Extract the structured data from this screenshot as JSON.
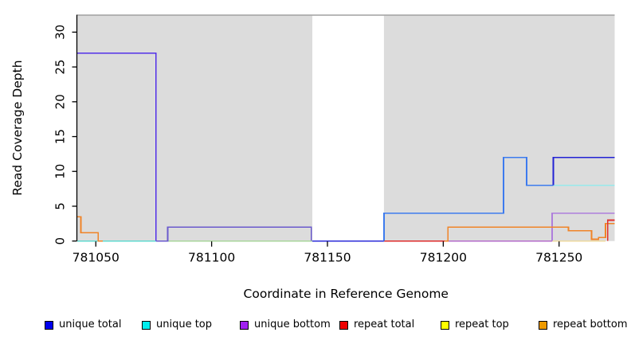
{
  "chart_data": {
    "type": "line",
    "subtype": "step-coverage",
    "title": "",
    "xlabel": "Coordinate in Reference Genome",
    "ylabel": "Read Coverage Depth",
    "xlim": [
      781042,
      781274
    ],
    "ylim": [
      0,
      32.5
    ],
    "xticks": [
      781050,
      781100,
      781150,
      781200,
      781250
    ],
    "xtick_labels": [
      "781050",
      "781100",
      "781150",
      "781200",
      "781250"
    ],
    "yticks": [
      0,
      5,
      10,
      15,
      20,
      25,
      30
    ],
    "ytick_labels": [
      "0",
      "5",
      "10",
      "15",
      "20",
      "25",
      "30"
    ],
    "grid": false,
    "plot_bg_color": "#DCDCDC",
    "gap_color": "#FFFFFF",
    "border_top_color": "#A0A0A0",
    "axis_color": "#000000",
    "background_regions": [
      {
        "name": "covered-left",
        "x0": 781042,
        "x1": 781143.5,
        "color": "#DCDCDC"
      },
      {
        "name": "uncovered-gap",
        "x0": 781143.5,
        "x1": 781174.4,
        "color": "#FFFFFF"
      },
      {
        "name": "covered-right",
        "x0": 781174.4,
        "x1": 781274,
        "color": "#DCDCDC"
      }
    ],
    "series": [
      {
        "name": "unique top at zero (left)",
        "color": "#62D8CF",
        "points": [
          [
            781042,
            0
          ],
          [
            781076,
            0
          ]
        ]
      },
      {
        "name": "zero line blend (cyan+yellow)",
        "color": "#A9D69C",
        "points": [
          [
            781081,
            0
          ],
          [
            781143.5,
            0
          ]
        ]
      },
      {
        "name": "unique total at zero (gap)",
        "color": "#2B2BD9",
        "points": [
          [
            781143.5,
            0
          ],
          [
            781174.4,
            0
          ]
        ]
      },
      {
        "name": "repeat total at zero",
        "color": "#DD2C2C",
        "points": [
          [
            781174.4,
            0
          ],
          [
            781202,
            0
          ]
        ]
      },
      {
        "name": "unique bottom at zero",
        "color": "#B36BC9",
        "points": [
          [
            781202,
            0
          ],
          [
            781247,
            0
          ]
        ]
      },
      {
        "name": "repeat top at zero",
        "color": "#EDD9A0",
        "points": [
          [
            781247,
            0
          ],
          [
            781270,
            0
          ]
        ]
      },
      {
        "name": "unique total+bottom plateau 27",
        "color": "#5230E8",
        "points": [
          [
            781042,
            27
          ],
          [
            781076,
            27
          ],
          [
            781076,
            0
          ]
        ]
      },
      {
        "name": "unique total+bottom plateau 2",
        "color": "#6A5ACD",
        "points": [
          [
            781076,
            0
          ],
          [
            781081,
            0
          ],
          [
            781081,
            2
          ],
          [
            781143,
            2
          ],
          [
            781143,
            0
          ]
        ]
      },
      {
        "name": "unique total+top steps 4-12-8",
        "color": "#3D7BEE",
        "points": [
          [
            781174.4,
            0
          ],
          [
            781174.4,
            4
          ],
          [
            781226,
            4
          ],
          [
            781226,
            12
          ],
          [
            781236,
            12
          ],
          [
            781236,
            8
          ],
          [
            781247.5,
            8
          ]
        ]
      },
      {
        "name": "unique top plateau 8",
        "color": "#97E9EC",
        "points": [
          [
            781247.5,
            8
          ],
          [
            781274,
            8
          ]
        ]
      },
      {
        "name": "unique total plateau 12",
        "color": "#2222D4",
        "points": [
          [
            781247.5,
            8
          ],
          [
            781247.5,
            12
          ],
          [
            781274,
            12
          ]
        ]
      },
      {
        "name": "unique bottom plateau 4",
        "color": "#AE7EDC",
        "points": [
          [
            781247,
            0
          ],
          [
            781247,
            4
          ],
          [
            781274,
            4
          ]
        ]
      },
      {
        "name": "repeat bottom left spike",
        "color": "#F08428",
        "points": [
          [
            781042,
            3.5
          ],
          [
            781043.5,
            3.5
          ],
          [
            781043.5,
            1.2
          ],
          [
            781051,
            1.2
          ],
          [
            781051,
            0
          ],
          [
            781053,
            0
          ]
        ]
      },
      {
        "name": "repeat bottom right steps",
        "color": "#F08428",
        "points": [
          [
            781200.5,
            0
          ],
          [
            781202,
            0
          ],
          [
            781202,
            2
          ],
          [
            781254,
            2
          ],
          [
            781254,
            1.5
          ],
          [
            781264,
            1.5
          ],
          [
            781264,
            0.25
          ],
          [
            781267,
            0.25
          ],
          [
            781267,
            0.5
          ],
          [
            781270,
            0.5
          ],
          [
            781270,
            2.5
          ],
          [
            781274,
            2.5
          ]
        ]
      },
      {
        "name": "repeat total right step 3",
        "color": "#E03030",
        "points": [
          [
            781271,
            0
          ],
          [
            781271,
            3
          ],
          [
            781274,
            3
          ]
        ]
      }
    ],
    "legend_position": "bottom",
    "legend": [
      {
        "label": "unique total",
        "color": "#0000EE"
      },
      {
        "label": "unique top",
        "color": "#00EEEE"
      },
      {
        "label": "unique bottom",
        "color": "#A020F0"
      },
      {
        "label": "repeat total",
        "color": "#EE0000"
      },
      {
        "label": "repeat top",
        "color": "#FFFF00"
      },
      {
        "label": "repeat bottom",
        "color": "#EE9A00"
      }
    ]
  }
}
